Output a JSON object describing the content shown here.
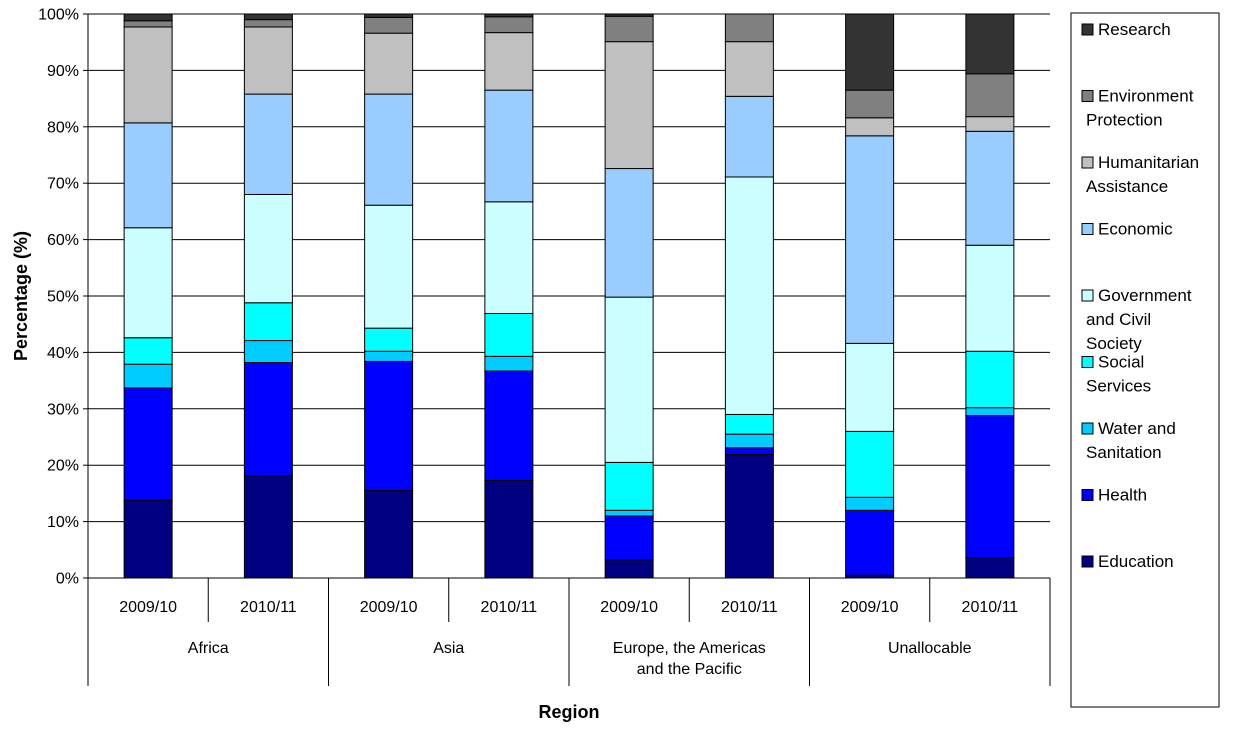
{
  "chart_data": {
    "type": "bar",
    "stacked": "percent",
    "ylabel": "Percentage (%)",
    "xlabel": "Region",
    "ylim": [
      0,
      100
    ],
    "yticks": [
      0,
      10,
      20,
      30,
      40,
      50,
      60,
      70,
      80,
      90,
      100
    ],
    "ytick_labels": [
      "0%",
      "10%",
      "20%",
      "30%",
      "40%",
      "50%",
      "60%",
      "70%",
      "80%",
      "90%",
      "100%"
    ],
    "grid": true,
    "legend_position": "right",
    "categories": [
      "2009/10",
      "2010/11",
      "2009/10",
      "2010/11",
      "2009/10",
      "2010/11",
      "2009/10",
      "2010/11"
    ],
    "groups": [
      {
        "label": "Africa",
        "span": 2
      },
      {
        "label": "Asia",
        "span": 2
      },
      {
        "label": "Europe, the Americas and the Pacific",
        "span": 2
      },
      {
        "label": "Unallocable",
        "span": 2
      }
    ],
    "series": [
      {
        "name": "Education",
        "color": "#000080",
        "values": [
          13.8,
          18.1,
          15.5,
          17.3,
          3.2,
          21.9,
          0.5,
          3.6
        ]
      },
      {
        "name": "Health",
        "color": "#0000FF",
        "values": [
          19.9,
          20.1,
          22.9,
          19.4,
          7.8,
          1.2,
          11.5,
          25.2
        ]
      },
      {
        "name": "Water and Sanitation",
        "color": "#00CCFF",
        "values": [
          4.2,
          3.9,
          1.8,
          2.6,
          1.0,
          2.4,
          2.3,
          1.4
        ]
      },
      {
        "name": "Social Services",
        "color": "#00FFFF",
        "values": [
          4.7,
          6.7,
          4.1,
          7.6,
          8.5,
          3.5,
          11.7,
          10.0
        ]
      },
      {
        "name": "Government and Civil Society",
        "color": "#CCFFFF",
        "values": [
          19.5,
          19.2,
          21.8,
          19.8,
          29.3,
          42.1,
          15.6,
          18.8
        ]
      },
      {
        "name": "Economic",
        "color": "#99CCFF",
        "values": [
          18.6,
          17.8,
          19.7,
          19.8,
          22.8,
          14.3,
          36.8,
          20.2
        ]
      },
      {
        "name": "Humanitarian Assistance",
        "color": "#C0C0C0",
        "values": [
          17.0,
          11.9,
          10.8,
          10.2,
          22.5,
          9.7,
          3.2,
          2.6
        ]
      },
      {
        "name": "Environment Protection",
        "color": "#808080",
        "values": [
          1.1,
          1.3,
          2.8,
          2.8,
          4.5,
          4.9,
          4.9,
          7.6
        ]
      },
      {
        "name": "Research",
        "color": "#333333",
        "values": [
          1.2,
          1.0,
          0.6,
          0.5,
          0.4,
          0.0,
          13.5,
          10.6
        ]
      }
    ]
  }
}
